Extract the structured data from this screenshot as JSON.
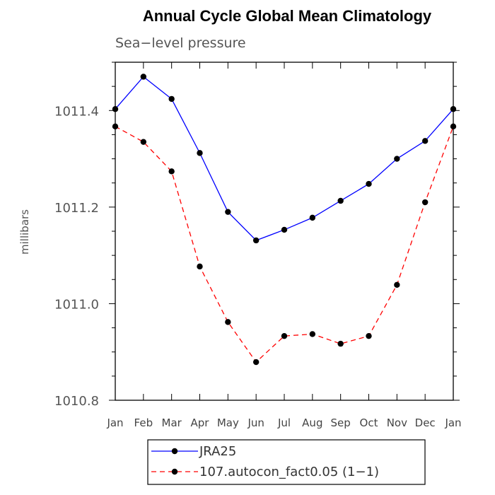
{
  "chart_data": {
    "type": "line",
    "title": "Annual Cycle Global Mean Climatology",
    "subtitle": "Sea−level pressure",
    "ylabel": "millibars",
    "xlabel": "",
    "ylim": [
      1010.8,
      1011.5
    ],
    "yticks": [
      "1010.8",
      "1011.0",
      "1011.2",
      "1011.4"
    ],
    "ytick_values": [
      1010.8,
      1011.0,
      1011.2,
      1011.4
    ],
    "categories": [
      "Jan",
      "Feb",
      "Mar",
      "Apr",
      "May",
      "Jun",
      "Jul",
      "Aug",
      "Sep",
      "Oct",
      "Nov",
      "Dec",
      "Jan"
    ],
    "grid": false,
    "legend_position": "bottom-center",
    "series": [
      {
        "name": "JRA25",
        "color": "#0000ff",
        "dash": "solid",
        "values": [
          1011.403,
          1011.47,
          1011.424,
          1011.312,
          1011.19,
          1011.131,
          1011.153,
          1011.178,
          1011.213,
          1011.248,
          1011.3,
          1011.337,
          1011.403
        ]
      },
      {
        "name": "107.autocon_fact0.05 (1−1)",
        "color": "#ff0000",
        "dash": "dashed",
        "values": [
          1011.367,
          1011.335,
          1011.274,
          1011.077,
          1010.962,
          1010.879,
          1010.933,
          1010.937,
          1010.917,
          1010.933,
          1011.039,
          1011.21,
          1011.367
        ]
      }
    ]
  }
}
